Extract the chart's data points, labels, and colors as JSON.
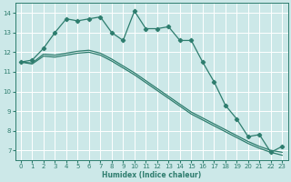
{
  "title": "",
  "xlabel": "Humidex (Indice chaleur)",
  "ylabel": "",
  "bg_color": "#cce8e8",
  "grid_color": "#ffffff",
  "line_color": "#2e7d6e",
  "ylim": [
    6.5,
    14.5
  ],
  "xlim": [
    -0.5,
    23.5
  ],
  "yticks": [
    7,
    8,
    9,
    10,
    11,
    12,
    13,
    14
  ],
  "xticks": [
    0,
    1,
    2,
    3,
    4,
    5,
    6,
    7,
    8,
    9,
    10,
    11,
    12,
    13,
    14,
    15,
    16,
    17,
    18,
    19,
    20,
    21,
    22,
    23
  ],
  "line1_x": [
    0,
    1,
    2,
    3,
    4,
    5,
    6,
    7,
    8,
    9,
    10,
    11,
    12,
    13,
    14,
    15,
    16,
    17,
    18,
    19,
    20,
    21,
    22,
    23
  ],
  "line1_y": [
    11.5,
    11.6,
    12.2,
    13.0,
    13.7,
    13.6,
    13.7,
    13.8,
    13.0,
    12.6,
    14.1,
    13.2,
    13.2,
    13.3,
    12.6,
    12.6,
    11.5,
    10.5,
    9.3,
    8.6,
    7.7,
    7.8,
    6.9,
    7.2
  ],
  "line2_x": [
    0,
    1,
    2,
    3,
    4,
    5,
    6,
    7,
    8,
    9,
    10,
    11,
    12,
    13,
    14,
    15,
    16,
    17,
    18,
    19,
    20,
    21,
    22,
    23
  ],
  "line2_y": [
    11.5,
    11.45,
    11.9,
    11.85,
    11.95,
    12.05,
    12.1,
    11.95,
    11.65,
    11.3,
    10.95,
    10.55,
    10.15,
    9.75,
    9.35,
    8.95,
    8.65,
    8.35,
    8.05,
    7.75,
    7.45,
    7.2,
    7.0,
    6.9
  ],
  "line3_x": [
    0,
    1,
    2,
    3,
    4,
    5,
    6,
    7,
    8,
    9,
    10,
    11,
    12,
    13,
    14,
    15,
    16,
    17,
    18,
    19,
    20,
    21,
    22,
    23
  ],
  "line3_y": [
    11.5,
    11.4,
    11.8,
    11.75,
    11.85,
    11.95,
    12.0,
    11.85,
    11.55,
    11.2,
    10.85,
    10.45,
    10.05,
    9.65,
    9.25,
    8.85,
    8.55,
    8.25,
    7.95,
    7.65,
    7.35,
    7.1,
    6.9,
    6.75
  ]
}
